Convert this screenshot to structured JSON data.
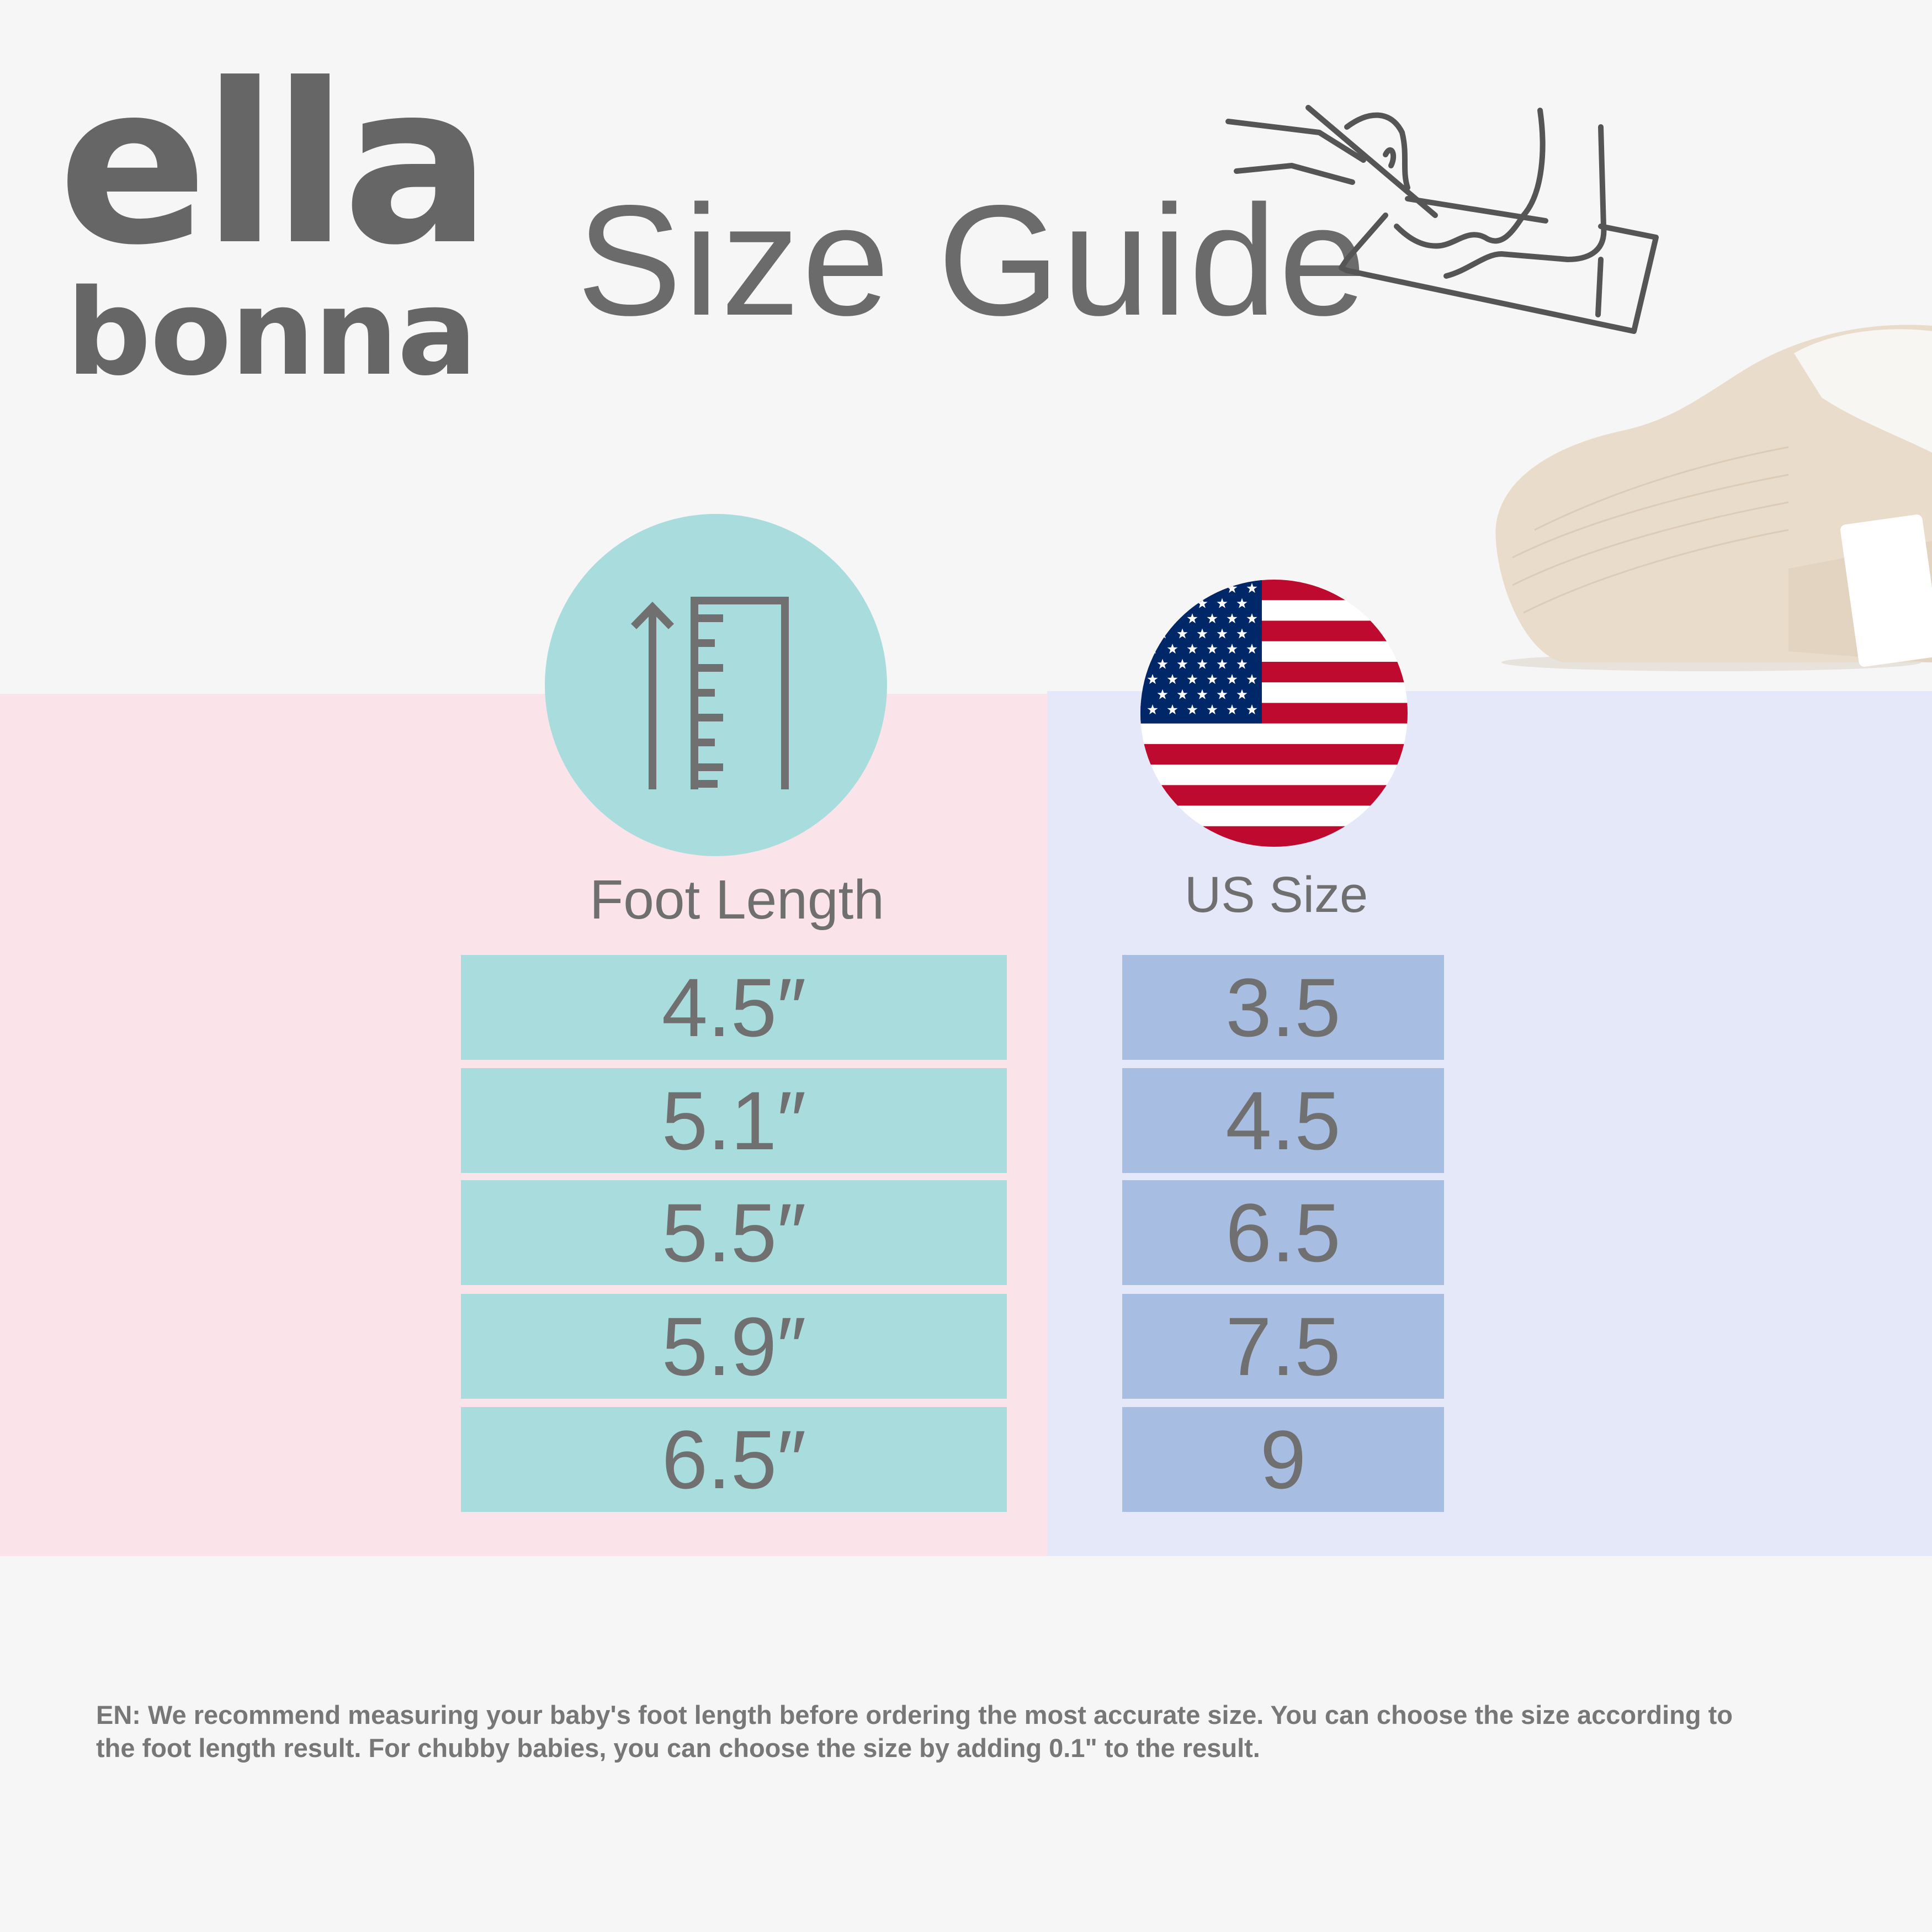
{
  "brand": {
    "logo_line1": "ella",
    "logo_line2": "bonna"
  },
  "title": "Size Guide",
  "icons": {
    "measure": "foot-measuring-drawing-icon",
    "ruler": "ruler-arrow-icon",
    "flag": "us-flag-icon",
    "product": "baby-shoe-photo"
  },
  "colors": {
    "background": "#f6f6f6",
    "pink_panel": "#fbe4e9",
    "lavender_panel": "#e4e8f8",
    "teal": "#a8dcdd",
    "blue": "#a8bde2",
    "text": "#6b6b6b"
  },
  "columns": {
    "foot_length": {
      "label": "Foot Length",
      "values": [
        "4.5″",
        "5.1″",
        "5.5″",
        "5.9″",
        "6.5″"
      ]
    },
    "us_size": {
      "label": "US Size",
      "values": [
        "3.5",
        "4.5",
        "6.5",
        "7.5",
        "9"
      ]
    }
  },
  "note": {
    "line1": "EN: We recommend measuring your baby's foot length before ordering the most accurate size. You can choose the size according to",
    "line2": "the foot length result. For chubby babies, you can choose the size by adding 0.1\"  to the result."
  }
}
